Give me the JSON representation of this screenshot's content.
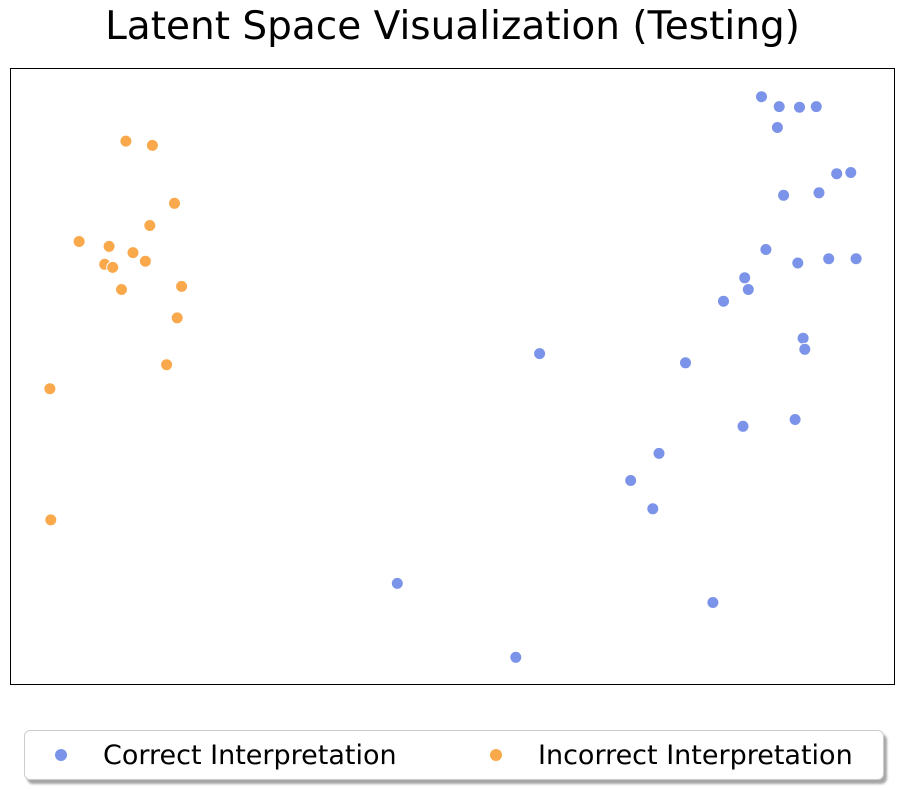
{
  "chart_data": {
    "type": "scatter",
    "title": "Latent Space Visualization (Testing)",
    "xlabel": "",
    "ylabel": "",
    "axes_ticks": "none",
    "grid": false,
    "legend_position": "bottom-center",
    "series": [
      {
        "name": "Correct Interpretation",
        "color": "#7b93e8",
        "points": [
          [
            0.849,
            0.955
          ],
          [
            0.869,
            0.939
          ],
          [
            0.892,
            0.938
          ],
          [
            0.911,
            0.939
          ],
          [
            0.867,
            0.905
          ],
          [
            0.934,
            0.83
          ],
          [
            0.95,
            0.832
          ],
          [
            0.914,
            0.799
          ],
          [
            0.874,
            0.795
          ],
          [
            0.854,
            0.707
          ],
          [
            0.89,
            0.685
          ],
          [
            0.925,
            0.692
          ],
          [
            0.956,
            0.692
          ],
          [
            0.83,
            0.661
          ],
          [
            0.834,
            0.642
          ],
          [
            0.806,
            0.623
          ],
          [
            0.896,
            0.563
          ],
          [
            0.898,
            0.545
          ],
          [
            0.598,
            0.538
          ],
          [
            0.763,
            0.523
          ],
          [
            0.887,
            0.431
          ],
          [
            0.828,
            0.42
          ],
          [
            0.733,
            0.376
          ],
          [
            0.701,
            0.332
          ],
          [
            0.726,
            0.286
          ],
          [
            0.437,
            0.165
          ],
          [
            0.794,
            0.134
          ],
          [
            0.571,
            0.045
          ]
        ]
      },
      {
        "name": "Incorrect Interpretation",
        "color": "#f9a94b",
        "points": [
          [
            0.13,
            0.883
          ],
          [
            0.16,
            0.876
          ],
          [
            0.185,
            0.782
          ],
          [
            0.157,
            0.746
          ],
          [
            0.077,
            0.72
          ],
          [
            0.111,
            0.712
          ],
          [
            0.138,
            0.702
          ],
          [
            0.152,
            0.688
          ],
          [
            0.106,
            0.683
          ],
          [
            0.115,
            0.678
          ],
          [
            0.193,
            0.647
          ],
          [
            0.125,
            0.642
          ],
          [
            0.188,
            0.596
          ],
          [
            0.176,
            0.52
          ],
          [
            0.044,
            0.481
          ],
          [
            0.045,
            0.268
          ]
        ]
      }
    ]
  }
}
